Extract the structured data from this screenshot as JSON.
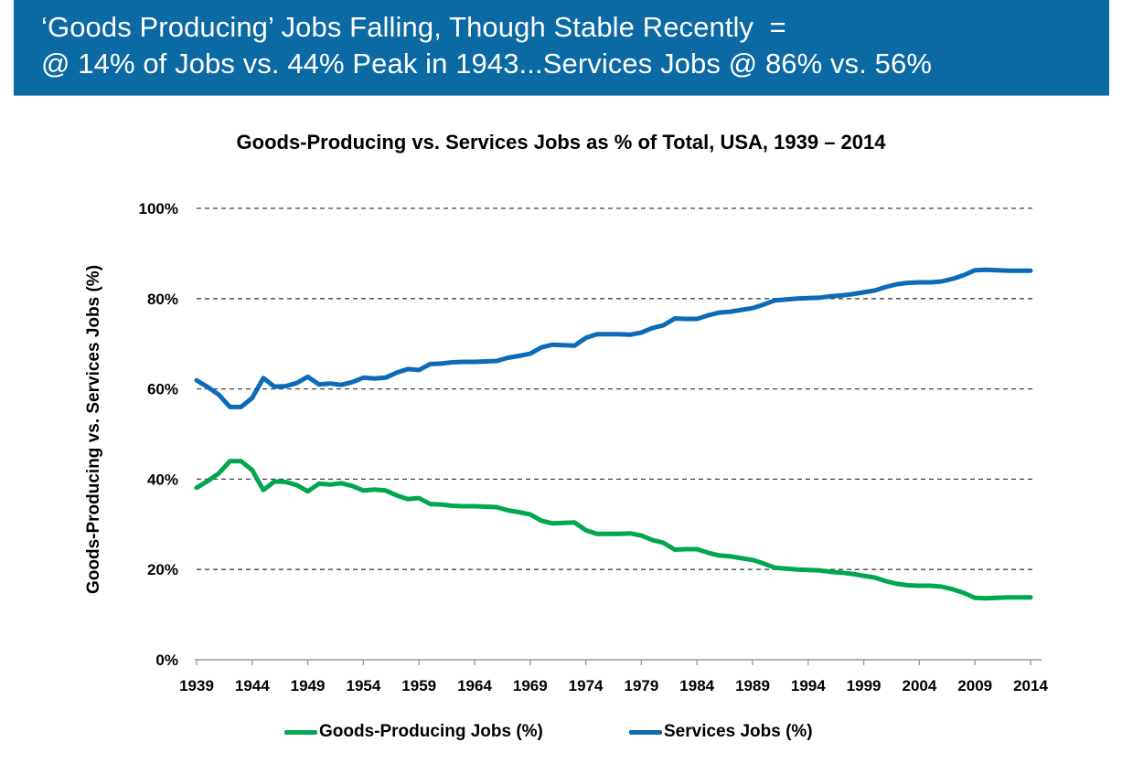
{
  "banner": {
    "line1": "‘Goods Producing’ Jobs Falling, Though Stable Recently  =",
    "line2": "@ 14% of Jobs vs. 44% Peak in 1943...Services Jobs @ 86% vs. 56%",
    "background_color": "#0b69a3"
  },
  "chart_data": {
    "type": "line",
    "title": "Goods-Producing vs. Services Jobs as % of Total, USA, 1939 – 2014",
    "xlabel": "",
    "ylabel": "Goods-Producing vs. Services Jobs (%)",
    "xlim": [
      1939,
      2014
    ],
    "ylim": [
      0,
      100
    ],
    "x_ticks": [
      1939,
      1944,
      1949,
      1954,
      1959,
      1964,
      1969,
      1974,
      1979,
      1984,
      1989,
      1994,
      1999,
      2004,
      2009,
      2014
    ],
    "x_tick_labels": [
      "1939",
      "1944",
      "1949",
      "1954",
      "1959",
      "1964",
      "1969",
      "1974",
      "1979",
      "1984",
      "1989",
      "1994",
      "1999",
      "2004",
      "2009",
      "2014"
    ],
    "y_ticks": [
      0,
      20,
      40,
      60,
      80,
      100
    ],
    "y_tick_labels": [
      "0%",
      "20%",
      "40%",
      "60%",
      "80%",
      "100%"
    ],
    "grid": "horizontal dashed",
    "legend_position": "bottom",
    "x": [
      1939,
      1940,
      1941,
      1942,
      1943,
      1944,
      1945,
      1946,
      1947,
      1948,
      1949,
      1950,
      1951,
      1952,
      1953,
      1954,
      1955,
      1956,
      1957,
      1958,
      1959,
      1960,
      1961,
      1962,
      1963,
      1964,
      1965,
      1966,
      1967,
      1968,
      1969,
      1970,
      1971,
      1972,
      1973,
      1974,
      1975,
      1976,
      1977,
      1978,
      1979,
      1980,
      1981,
      1982,
      1983,
      1984,
      1985,
      1986,
      1987,
      1988,
      1989,
      1990,
      1991,
      1992,
      1993,
      1994,
      1995,
      1996,
      1997,
      1998,
      1999,
      2000,
      2001,
      2002,
      2003,
      2004,
      2005,
      2006,
      2007,
      2008,
      2009,
      2010,
      2011,
      2012,
      2013,
      2014
    ],
    "series": [
      {
        "name": "Goods-Producing Jobs (%)",
        "color": "#00a650",
        "values": [
          38.1,
          39.6,
          41.3,
          44.0,
          44.0,
          42.0,
          37.6,
          39.5,
          39.4,
          38.7,
          37.3,
          39.0,
          38.8,
          39.1,
          38.5,
          37.5,
          37.7,
          37.5,
          36.4,
          35.6,
          35.8,
          34.5,
          34.4,
          34.1,
          34.0,
          34.0,
          33.9,
          33.8,
          33.1,
          32.7,
          32.2,
          30.8,
          30.2,
          30.3,
          30.4,
          28.7,
          27.9,
          27.9,
          27.9,
          28.0,
          27.5,
          26.5,
          25.9,
          24.4,
          24.5,
          24.5,
          23.7,
          23.1,
          22.9,
          22.5,
          22.1,
          21.3,
          20.4,
          20.2,
          20.0,
          19.9,
          19.8,
          19.5,
          19.3,
          19.0,
          18.6,
          18.2,
          17.4,
          16.8,
          16.5,
          16.4,
          16.4,
          16.2,
          15.6,
          14.8,
          13.7,
          13.6,
          13.7,
          13.8,
          13.8,
          13.8
        ]
      },
      {
        "name": "Services Jobs (%)",
        "color": "#0b6bb8",
        "values": [
          61.9,
          60.4,
          58.7,
          56.0,
          56.0,
          58.0,
          62.4,
          60.5,
          60.6,
          61.3,
          62.7,
          61.0,
          61.2,
          60.9,
          61.5,
          62.5,
          62.3,
          62.5,
          63.6,
          64.4,
          64.2,
          65.5,
          65.6,
          65.9,
          66.0,
          66.0,
          66.1,
          66.2,
          66.9,
          67.3,
          67.8,
          69.2,
          69.8,
          69.7,
          69.6,
          71.3,
          72.1,
          72.1,
          72.1,
          72.0,
          72.5,
          73.5,
          74.1,
          75.6,
          75.5,
          75.5,
          76.3,
          76.9,
          77.1,
          77.5,
          77.9,
          78.7,
          79.6,
          79.8,
          80.0,
          80.1,
          80.2,
          80.5,
          80.7,
          81.0,
          81.4,
          81.8,
          82.6,
          83.2,
          83.5,
          83.6,
          83.6,
          83.8,
          84.4,
          85.2,
          86.3,
          86.4,
          86.3,
          86.2,
          86.2,
          86.2
        ]
      }
    ]
  }
}
